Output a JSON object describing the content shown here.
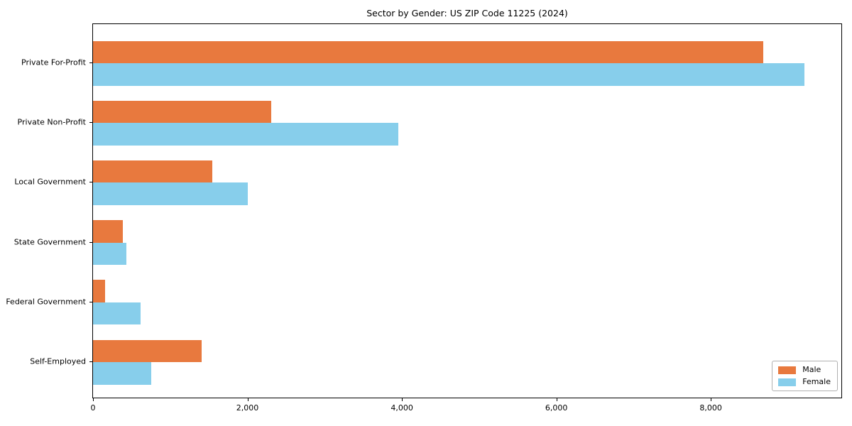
{
  "chart_data": {
    "type": "bar",
    "orientation": "horizontal",
    "title": "Sector by Gender: US ZIP Code 11225 (2024)",
    "categories": [
      "Private For-Profit",
      "Private Non-Profit",
      "Local Government",
      "State Government",
      "Federal Government",
      "Self-Employed"
    ],
    "series": [
      {
        "name": "Male",
        "color": "#E8793E",
        "values": [
          8680,
          2310,
          1545,
          390,
          155,
          1405
        ]
      },
      {
        "name": "Female",
        "color": "#87CEEB",
        "values": [
          9210,
          3950,
          2005,
          430,
          620,
          750
        ]
      }
    ],
    "xlabel": "",
    "ylabel": "",
    "xlim": [
      0,
      9690
    ],
    "x_ticks": [
      {
        "value": 0,
        "label": "0"
      },
      {
        "value": 2000,
        "label": "2,000"
      },
      {
        "value": 4000,
        "label": "4,000"
      },
      {
        "value": 6000,
        "label": "6,000"
      },
      {
        "value": 8000,
        "label": "8,000"
      }
    ],
    "grid": false,
    "legend": {
      "position": "lower right"
    }
  }
}
